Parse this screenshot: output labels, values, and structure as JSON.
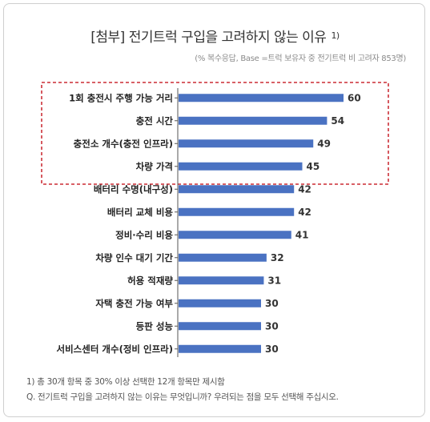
{
  "title": "[첨부] 전기트럭 구입을 고려하지 않는 이유",
  "title_sup": "1)",
  "subtitle": "(% 복수응답, Base =트럭 보유자 중 전기트럭 비 고려자 853명)",
  "footnotes": [
    "1) 총 30개 항목 중 30% 이상 선택한 12개 항목만 제시함",
    "Q. 전기트럭 구입을 고려하지 않는 이유는 무엇입니까? 우려되는 점을 모두 선택해 주십시오."
  ],
  "colors": {
    "bar": "#4a72c2",
    "highlight_box": "#c0000a"
  },
  "chart_data": {
    "type": "bar",
    "orientation": "horizontal",
    "categories": [
      "1회 충전시 주행 가능 거리",
      "충전 시간",
      "충전소 개수(충전 인프라)",
      "차량 가격",
      "배터리 수명(내구성)",
      "배터리 교체 비용",
      "정비·수리 비용",
      "차량 인수 대기 기간",
      "허용 적재량",
      "자택 충전 가능 여부",
      "등판 성능",
      "서비스센터 개수(정비 인프라)"
    ],
    "values": [
      60,
      54,
      49,
      45,
      42,
      42,
      41,
      32,
      31,
      30,
      30,
      30
    ],
    "highlighted_count": 4,
    "xlim": [
      0,
      65
    ],
    "grid": false,
    "legend": "none"
  }
}
